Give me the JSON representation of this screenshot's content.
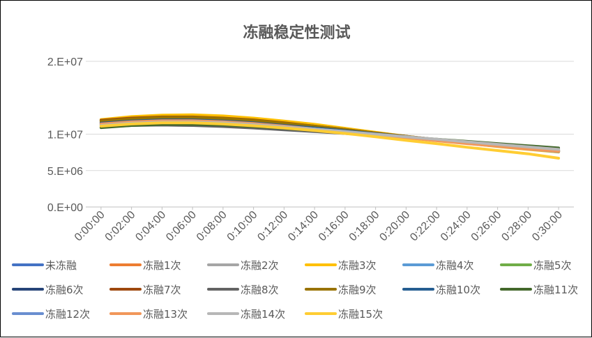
{
  "chart_data": {
    "type": "line",
    "title": "冻融稳定性测试",
    "xlabel": "",
    "ylabel": "",
    "ylim": [
      0,
      20000000
    ],
    "y_ticks": [
      {
        "value": 0,
        "label": "0.E+00"
      },
      {
        "value": 5000000,
        "label": "5.E+06"
      },
      {
        "value": 10000000,
        "label": "1.E+07"
      },
      {
        "value": 20000000,
        "label": "2.E+07"
      }
    ],
    "categories": [
      "0:00:00",
      "0:02:00",
      "0:04:00",
      "0:06:00",
      "0:08:00",
      "0:10:00",
      "0:12:00",
      "0:14:00",
      "0:16:00",
      "0:18:00",
      "0:20:00",
      "0:22:00",
      "0:24:00",
      "0:26:00",
      "0:28:00",
      "0:30:00"
    ],
    "grid": true,
    "legend_position": "bottom",
    "series": [
      {
        "name": "未冻融",
        "color": "#4472C4",
        "values": [
          11500000,
          11800000,
          12000000,
          12050000,
          11900000,
          11600000,
          11300000,
          10900000,
          10450000,
          10000000,
          9550000,
          9150000,
          8750000,
          8350000,
          7950000,
          7600000
        ]
      },
      {
        "name": "冻融1次",
        "color": "#ED7D31",
        "values": [
          11600000,
          11900000,
          12100000,
          12150000,
          12000000,
          11700000,
          11350000,
          10950000,
          10500000,
          10050000,
          9600000,
          9150000,
          8750000,
          8350000,
          7950000,
          7600000
        ]
      },
      {
        "name": "冻融2次",
        "color": "#A5A5A5",
        "values": [
          11400000,
          11800000,
          12000000,
          12000000,
          11850000,
          11550000,
          11200000,
          10800000,
          10400000,
          9950000,
          9550000,
          9150000,
          8750000,
          8350000,
          7950000,
          7650000
        ]
      },
      {
        "name": "冻融3次",
        "color": "#FFC000",
        "values": [
          12000000,
          12400000,
          12600000,
          12650000,
          12500000,
          12200000,
          11800000,
          11350000,
          10800000,
          10250000,
          9700000,
          9200000,
          8750000,
          8300000,
          7900000,
          7550000
        ]
      },
      {
        "name": "冻融4次",
        "color": "#5B9BD5",
        "values": [
          11300000,
          11700000,
          11900000,
          11950000,
          11800000,
          11500000,
          11150000,
          10750000,
          10350000,
          9950000,
          9550000,
          9150000,
          8750000,
          8350000,
          7950000,
          7600000
        ]
      },
      {
        "name": "冻融5次",
        "color": "#70AD47",
        "values": [
          11200000,
          11600000,
          11800000,
          11850000,
          11700000,
          11450000,
          11100000,
          10750000,
          10350000,
          9950000,
          9550000,
          9200000,
          8850000,
          8450000,
          8100000,
          7750000
        ]
      },
      {
        "name": "冻融6次",
        "color": "#264478",
        "values": [
          11800000,
          12050000,
          12200000,
          12200000,
          12050000,
          11750000,
          11400000,
          11000000,
          10550000,
          10100000,
          9650000,
          9200000,
          8800000,
          8400000,
          8000000,
          7650000
        ]
      },
      {
        "name": "冻融7次",
        "color": "#9E480E",
        "values": [
          11900000,
          12200000,
          12350000,
          12350000,
          12200000,
          11950000,
          11550000,
          11100000,
          10650000,
          10150000,
          9700000,
          9250000,
          8850000,
          8450000,
          8050000,
          7700000
        ]
      },
      {
        "name": "冻融8次",
        "color": "#636363",
        "values": [
          11000000,
          11200000,
          11250000,
          11200000,
          11050000,
          10850000,
          10600000,
          10350000,
          10100000,
          9850000,
          9550000,
          9250000,
          8900000,
          8550000,
          8200000,
          7850000
        ]
      },
      {
        "name": "冻融9次",
        "color": "#997300",
        "values": [
          11800000,
          12100000,
          12300000,
          12300000,
          12150000,
          11900000,
          11500000,
          11100000,
          10650000,
          10150000,
          9700000,
          9250000,
          8850000,
          8450000,
          8050000,
          7700000
        ]
      },
      {
        "name": "冻融10次",
        "color": "#255E91",
        "values": [
          11500000,
          11800000,
          11950000,
          11950000,
          11800000,
          11550000,
          11200000,
          10850000,
          10450000,
          10050000,
          9650000,
          9250000,
          8850000,
          8450000,
          8100000,
          7750000
        ]
      },
      {
        "name": "冻融11次",
        "color": "#43682B",
        "values": [
          10900000,
          11200000,
          11350000,
          11350000,
          11250000,
          11050000,
          10800000,
          10500000,
          10200000,
          9900000,
          9600000,
          9300000,
          9000000,
          8700000,
          8400000,
          8100000
        ]
      },
      {
        "name": "冻融12次",
        "color": "#698ED0",
        "values": [
          11300000,
          11600000,
          11750000,
          11750000,
          11600000,
          11350000,
          11050000,
          10700000,
          10350000,
          9950000,
          9600000,
          9200000,
          8850000,
          8450000,
          8100000,
          7750000
        ]
      },
      {
        "name": "冻融13次",
        "color": "#F1975A",
        "values": [
          11400000,
          11700000,
          11850000,
          11850000,
          11700000,
          11450000,
          11100000,
          10700000,
          10300000,
          9900000,
          9500000,
          9100000,
          8700000,
          8350000,
          7950000,
          7650000
        ]
      },
      {
        "name": "冻融14次",
        "color": "#B7B7B7",
        "values": [
          11200000,
          11500000,
          11650000,
          11650000,
          11550000,
          11300000,
          11000000,
          10700000,
          10350000,
          10000000,
          9650000,
          9300000,
          8950000,
          8600000,
          8250000,
          7900000
        ]
      },
      {
        "name": "冻融15次",
        "color": "#FFCD33",
        "values": [
          11100000,
          11400000,
          11550000,
          11550000,
          11400000,
          11150000,
          10850000,
          10500000,
          10100000,
          9650000,
          9150000,
          8700000,
          8200000,
          7750000,
          7300000,
          6700000
        ]
      }
    ]
  }
}
